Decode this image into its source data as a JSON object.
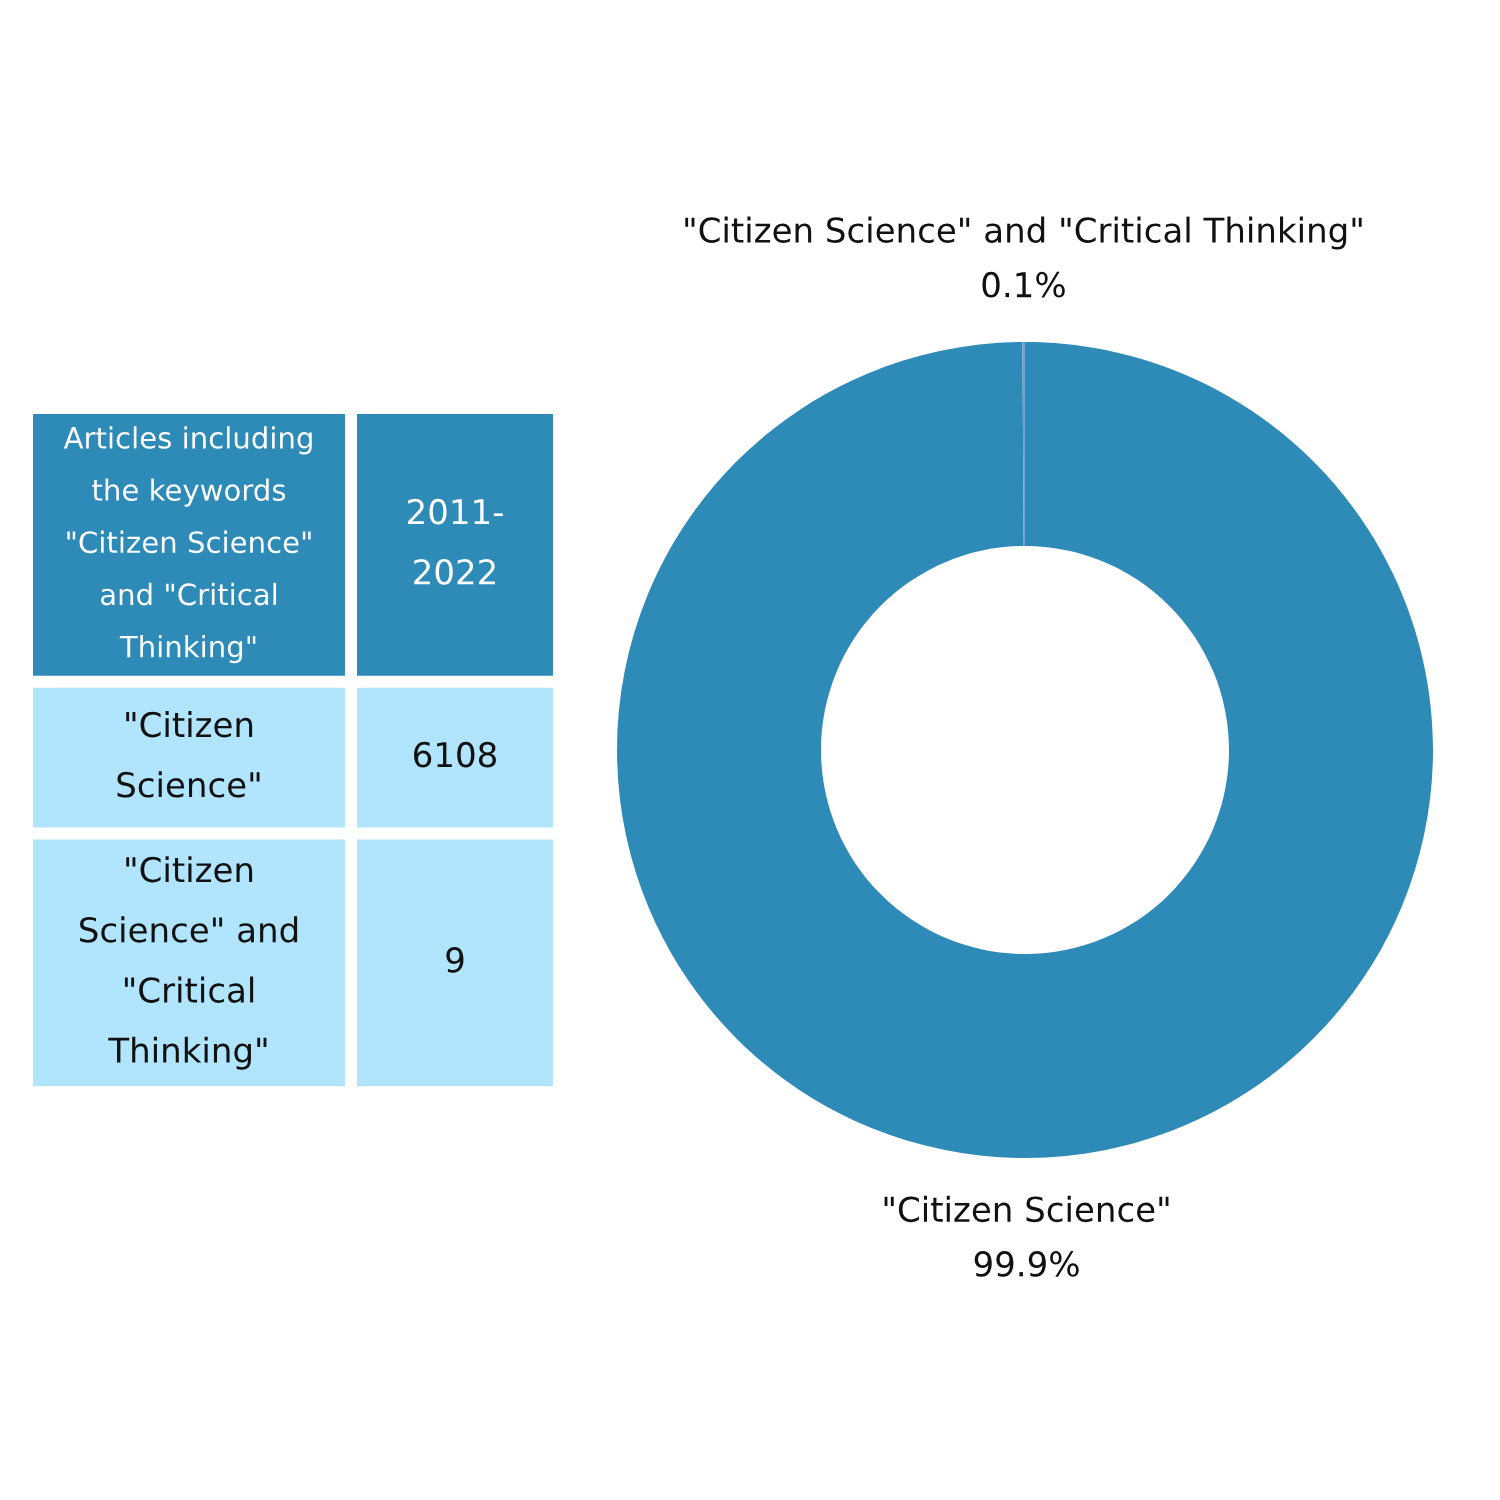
{
  "chart_data": [
    {
      "type": "other",
      "title": "Articles including the keywords \"Citizen Science\" and \"Critical Thinking\"",
      "subtitle": "2011-2022",
      "categories": [
        "\"Citizen Science\"",
        "\"Citizen Science\" and \"Critical Thinking\""
      ],
      "values": [
        6108,
        9
      ],
      "data_labels": true,
      "colors": [
        "#b0e5fd",
        "#b0e5fd"
      ]
    },
    {
      "type": "donut",
      "categories": [
        "\"Citizen Science\"",
        "\"Citizen Science\" and \"Critical Thinking\""
      ],
      "values": [
        99.9,
        0.1
      ],
      "colors": [
        "#2e8bb8",
        "#6f9fd0"
      ],
      "value_labels": [
        "99.9%",
        "0.1%"
      ]
    }
  ]
}
